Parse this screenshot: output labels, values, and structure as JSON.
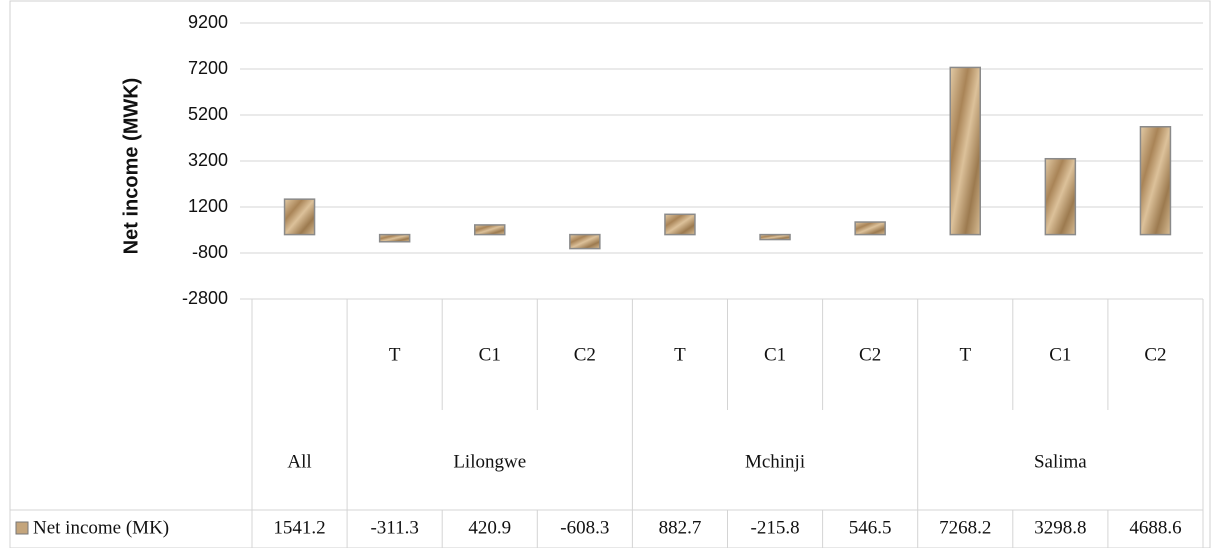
{
  "chart_data": {
    "type": "bar",
    "y_axis_title": "Net income (MWK)",
    "categories": [
      null,
      "T",
      "C1",
      "C2",
      "T",
      "C1",
      "C2",
      "T",
      "C1",
      "C2"
    ],
    "group_categories": [
      "All",
      "Lilongwe",
      null,
      null,
      "Mchinji",
      null,
      null,
      "Salima",
      null,
      null
    ],
    "series": [
      {
        "name": "Net income (MK)",
        "color": "#c4a57c",
        "values": [
          1541.2,
          -311.3,
          420.9,
          -608.3,
          882.7,
          -215.8,
          546.5,
          7268.2,
          3298.8,
          4688.6
        ]
      }
    ],
    "ylim": [
      -2800,
      9200
    ],
    "yticks": [
      -2800,
      -800,
      1200,
      3200,
      5200,
      7200,
      9200
    ],
    "grid": true,
    "data_table": true
  }
}
